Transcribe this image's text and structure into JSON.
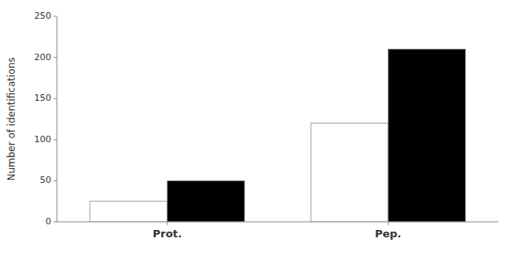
{
  "chart_data": {
    "type": "bar",
    "ylabel": "Number of identifications",
    "categories": [
      "Prot.",
      "Pep."
    ],
    "series": [
      {
        "color": "#ffffff",
        "values": [
          25,
          120
        ]
      },
      {
        "color": "#000000",
        "values": [
          50,
          210
        ]
      }
    ],
    "ylim": [
      0,
      250
    ],
    "yticks": [
      0,
      50,
      100,
      150,
      200,
      250
    ],
    "grid": false
  }
}
